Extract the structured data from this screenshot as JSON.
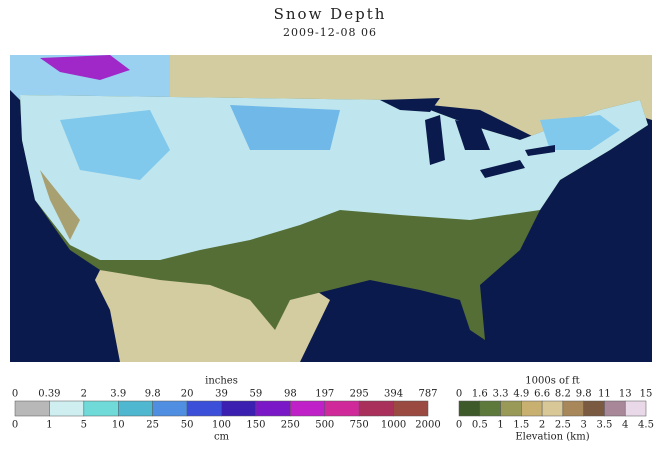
{
  "header": {
    "title": "Snow Depth",
    "subtitle": "2009-12-08 06"
  },
  "snow_legend": {
    "top_title": "inches",
    "top_labels": [
      "0",
      "0.39",
      "2",
      "3.9",
      "9.8",
      "20",
      "39",
      "59",
      "98",
      "197",
      "295",
      "394",
      "787"
    ],
    "bottom_labels": [
      "0",
      "1",
      "5",
      "10",
      "25",
      "50",
      "100",
      "150",
      "250",
      "500",
      "750",
      "1000",
      "2000"
    ],
    "bottom_title": "cm",
    "colors": [
      "#b8b8b8",
      "#cfeef0",
      "#6fdad8",
      "#4fb8d0",
      "#4f8ee0",
      "#3c4fd8",
      "#3a1fb0",
      "#7a18c8",
      "#c020c8",
      "#d02a9a",
      "#a8305a",
      "#9a4a40"
    ]
  },
  "elevation_legend": {
    "top_title": "1000s of ft",
    "top_labels": [
      "0",
      "1.6",
      "3.3",
      "4.9",
      "6.6",
      "8.2",
      "9.8",
      "11",
      "13",
      "15"
    ],
    "bottom_labels": [
      "0",
      "0.5",
      "1",
      "1.5",
      "2",
      "2.5",
      "3",
      "3.5",
      "4",
      "4.5"
    ],
    "bottom_title": "Elevation (km)",
    "colors": [
      "#3f5a2a",
      "#5d7a3c",
      "#9a9a58",
      "#c8b070",
      "#d8c898",
      "#a8885a",
      "#7a5a40",
      "#a88898",
      "#e8d8e8"
    ]
  }
}
